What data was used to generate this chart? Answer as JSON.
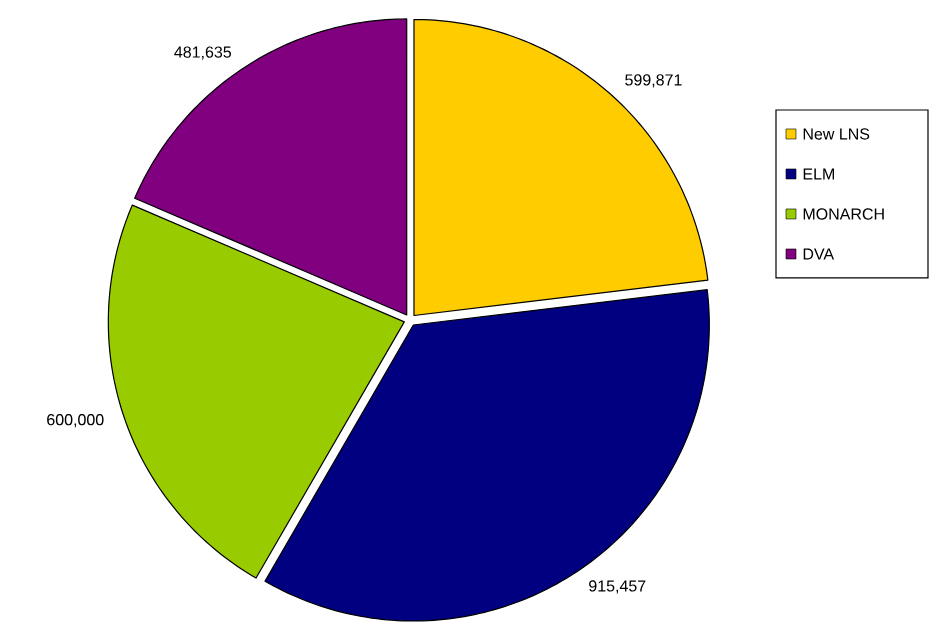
{
  "chart_data": {
    "type": "pie",
    "categories": [
      "New LNS",
      "ELM",
      "MONARCH",
      "DVA"
    ],
    "values": [
      599871,
      915457,
      600000,
      481635
    ],
    "value_labels": [
      "599,871",
      "915,457",
      "600,000",
      "481,635"
    ],
    "colors": [
      "#ffcc00",
      "#000080",
      "#99cc00",
      "#800080"
    ],
    "legend": "right"
  }
}
